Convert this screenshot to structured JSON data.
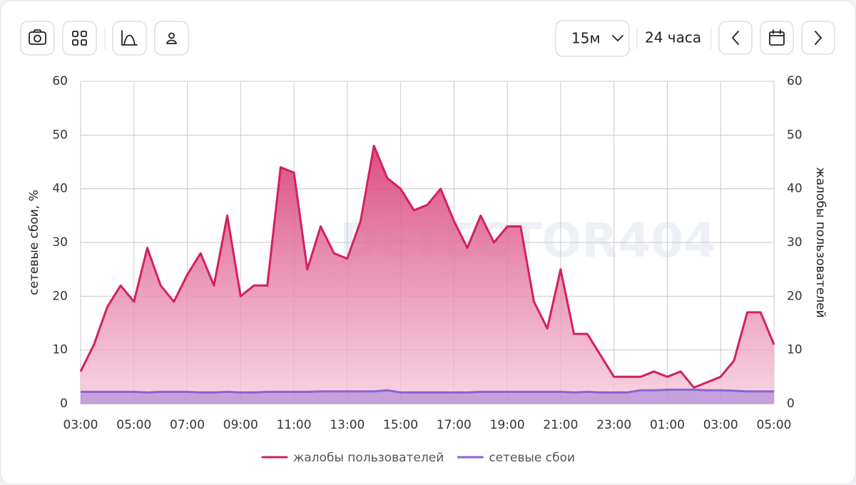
{
  "toolbar": {
    "interval": "15м",
    "period": "24 часа"
  },
  "watermark": "DETECTOR404",
  "chart_data": {
    "type": "area",
    "y_label": "сетевые сбои, %",
    "y2_label": "жалобы пользователей",
    "categories": [
      "03:00",
      null,
      null,
      null,
      "05:00",
      null,
      null,
      null,
      "07:00",
      null,
      null,
      null,
      "09:00",
      null,
      null,
      null,
      "11:00",
      null,
      null,
      null,
      "13:00",
      null,
      null,
      null,
      "15:00",
      null,
      null,
      null,
      "17:00",
      null,
      null,
      null,
      "19:00",
      null,
      null,
      null,
      "21:00",
      null,
      null,
      null,
      "23:00",
      null,
      null,
      null,
      "01:00",
      null,
      null,
      null,
      "03:00",
      null,
      null,
      null,
      "05:00"
    ],
    "series": [
      {
        "name": "жалобы пользователей",
        "color": "#d4205f",
        "axis": "y2",
        "values": [
          6,
          11,
          18,
          22,
          19,
          29,
          22,
          19,
          24,
          28,
          22,
          35,
          20,
          22,
          22,
          44,
          43,
          25,
          33,
          28,
          27,
          34,
          48,
          42,
          40,
          36,
          37,
          40,
          34,
          29,
          35,
          30,
          33,
          33,
          19,
          14,
          25,
          13,
          13,
          9,
          5,
          5,
          5,
          6,
          5,
          6,
          3,
          4,
          5,
          8,
          17,
          17,
          11
        ]
      },
      {
        "name": "сетевые сбои",
        "color": "#8a63d2",
        "axis": "y",
        "values": [
          2.2,
          2.2,
          2.2,
          2.2,
          2.2,
          2.1,
          2.2,
          2.2,
          2.2,
          2.1,
          2.1,
          2.2,
          2.1,
          2.1,
          2.2,
          2.2,
          2.2,
          2.2,
          2.3,
          2.3,
          2.3,
          2.3,
          2.3,
          2.5,
          2.1,
          2.1,
          2.1,
          2.1,
          2.1,
          2.1,
          2.2,
          2.2,
          2.2,
          2.2,
          2.2,
          2.2,
          2.2,
          2.1,
          2.2,
          2.1,
          2.1,
          2.1,
          2.5,
          2.5,
          2.6,
          2.6,
          2.6,
          2.5,
          2.5,
          2.4,
          2.3,
          2.3,
          2.3
        ]
      }
    ],
    "ylim": [
      0,
      60
    ],
    "yticks": [
      0,
      10,
      20,
      30,
      40,
      50,
      60
    ],
    "y2lim": [
      0,
      60
    ],
    "y2ticks": [
      0,
      10,
      20,
      30,
      40,
      50,
      60
    ],
    "grid": true,
    "legend": "bottom"
  }
}
